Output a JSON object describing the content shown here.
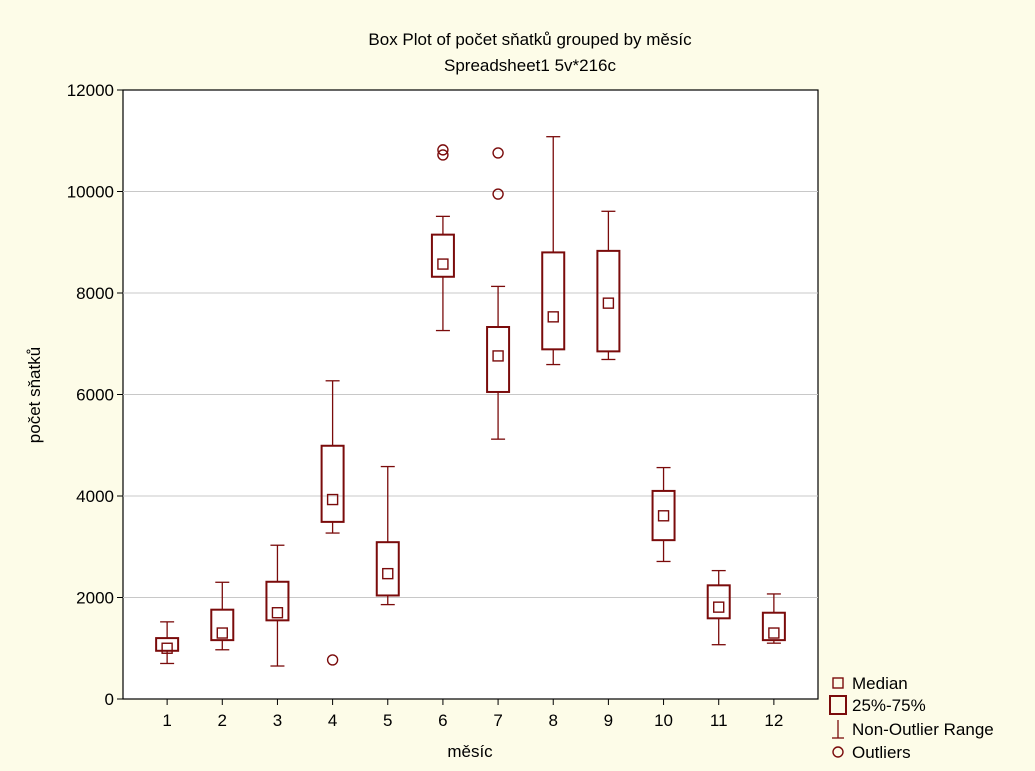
{
  "chart_data": {
    "type": "box",
    "title": "Box Plot of počet sňatků grouped by  měsíc",
    "subtitle": "Spreadsheet1 5v*216c",
    "xlabel": "měsíc",
    "ylabel": "počet sňatků",
    "ylim": [
      0,
      12000
    ],
    "yticks": [
      0,
      2000,
      4000,
      6000,
      8000,
      10000,
      12000
    ],
    "grid": true,
    "legend_position": "bottom-right",
    "color": "#7a0b0b",
    "legend": [
      {
        "key": "median",
        "label": "Median"
      },
      {
        "key": "box",
        "label": "25%-75%"
      },
      {
        "key": "range",
        "label": "Non-Outlier Range"
      },
      {
        "key": "outlier",
        "label": "Outliers"
      }
    ],
    "categories": [
      "1",
      "2",
      "3",
      "4",
      "5",
      "6",
      "7",
      "8",
      "9",
      "10",
      "11",
      "12"
    ],
    "boxes": [
      {
        "category": "1",
        "min": 700,
        "q1": 950,
        "median": 1000,
        "q3": 1200,
        "max": 1520,
        "outliers": []
      },
      {
        "category": "2",
        "min": 970,
        "q1": 1160,
        "median": 1300,
        "q3": 1760,
        "max": 2300,
        "outliers": []
      },
      {
        "category": "3",
        "min": 650,
        "q1": 1550,
        "median": 1700,
        "q3": 2310,
        "max": 3030,
        "outliers": []
      },
      {
        "category": "4",
        "min": 3270,
        "q1": 3490,
        "median": 3930,
        "q3": 4990,
        "max": 6270,
        "outliers": [
          770
        ]
      },
      {
        "category": "5",
        "min": 1860,
        "q1": 2040,
        "median": 2470,
        "q3": 3090,
        "max": 4580,
        "outliers": []
      },
      {
        "category": "6",
        "min": 7260,
        "q1": 8320,
        "median": 8570,
        "q3": 9150,
        "max": 9510,
        "outliers": [
          10720,
          10820
        ]
      },
      {
        "category": "7",
        "min": 5120,
        "q1": 6050,
        "median": 6760,
        "q3": 7330,
        "max": 8130,
        "outliers": [
          9950,
          10760
        ]
      },
      {
        "category": "8",
        "min": 6590,
        "q1": 6890,
        "median": 7530,
        "q3": 8800,
        "max": 11080,
        "outliers": []
      },
      {
        "category": "9",
        "min": 6690,
        "q1": 6850,
        "median": 7800,
        "q3": 8830,
        "max": 9610,
        "outliers": []
      },
      {
        "category": "10",
        "min": 2710,
        "q1": 3130,
        "median": 3610,
        "q3": 4100,
        "max": 4560,
        "outliers": []
      },
      {
        "category": "11",
        "min": 1070,
        "q1": 1590,
        "median": 1810,
        "q3": 2240,
        "max": 2530,
        "outliers": []
      },
      {
        "category": "12",
        "min": 1100,
        "q1": 1160,
        "median": 1300,
        "q3": 1700,
        "max": 2070,
        "outliers": []
      }
    ]
  }
}
